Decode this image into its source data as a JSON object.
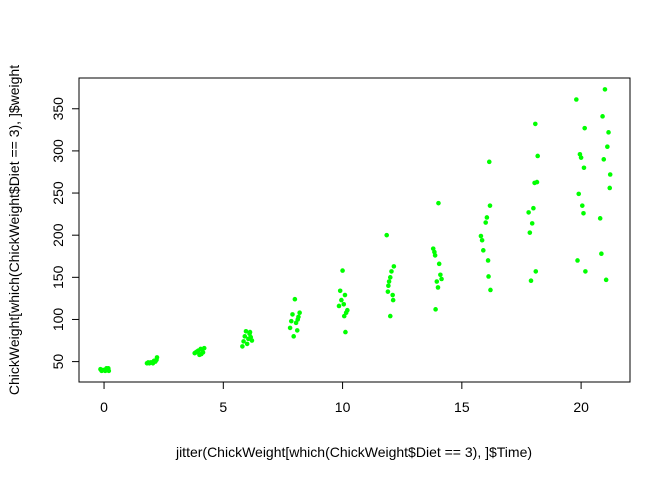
{
  "chart_data": {
    "type": "scatter",
    "title": "",
    "xlabel": "jitter(ChickWeight[which(ChickWeight$Diet == 3), ]$Time)",
    "ylabel": "ChickWeight[which(ChickWeight$Diet == 3), ]$weight",
    "xlim": [
      -1.05,
      22.05
    ],
    "ylim": [
      25.8,
      386.5
    ],
    "x_ticks": [
      0,
      5,
      10,
      15,
      20
    ],
    "y_ticks": [
      50,
      100,
      150,
      200,
      250,
      300,
      350
    ],
    "grid": false,
    "legend": "none",
    "point_color": "#00ff00",
    "series": [
      {
        "name": "",
        "points": [
          [
            -0.15,
            41
          ],
          [
            -0.05,
            40
          ],
          [
            0.05,
            39
          ],
          [
            0.15,
            41
          ],
          [
            0.2,
            39
          ],
          [
            -0.1,
            39
          ],
          [
            0.1,
            42
          ],
          [
            0.0,
            40
          ],
          [
            0.18,
            42
          ],
          [
            -0.12,
            40
          ],
          [
            1.8,
            48
          ],
          [
            1.95,
            49
          ],
          [
            2.05,
            48
          ],
          [
            2.15,
            50
          ],
          [
            2.2,
            52
          ],
          [
            1.9,
            48
          ],
          [
            2.1,
            51
          ],
          [
            2.22,
            55
          ],
          [
            2.0,
            49
          ],
          [
            1.85,
            49
          ],
          [
            3.8,
            60
          ],
          [
            3.9,
            62
          ],
          [
            4.0,
            58
          ],
          [
            4.1,
            64
          ],
          [
            4.15,
            61
          ],
          [
            3.95,
            63
          ],
          [
            4.05,
            65
          ],
          [
            3.85,
            61
          ],
          [
            4.2,
            66
          ],
          [
            4.08,
            59
          ],
          [
            5.8,
            68
          ],
          [
            5.85,
            74
          ],
          [
            5.9,
            80
          ],
          [
            5.95,
            86
          ],
          [
            6.0,
            71
          ],
          [
            6.05,
            77
          ],
          [
            6.1,
            83
          ],
          [
            6.15,
            79
          ],
          [
            6.2,
            75
          ],
          [
            6.12,
            85
          ],
          [
            7.8,
            90
          ],
          [
            7.85,
            98
          ],
          [
            7.9,
            106
          ],
          [
            7.95,
            80
          ],
          [
            8.0,
            124
          ],
          [
            8.05,
            96
          ],
          [
            8.1,
            87
          ],
          [
            8.15,
            103
          ],
          [
            8.2,
            108
          ],
          [
            8.12,
            100
          ],
          [
            9.85,
            116
          ],
          [
            9.9,
            134
          ],
          [
            9.95,
            123
          ],
          [
            10.0,
            158
          ],
          [
            10.05,
            118
          ],
          [
            10.1,
            129
          ],
          [
            10.12,
            85
          ],
          [
            10.15,
            108
          ],
          [
            10.2,
            111
          ],
          [
            10.07,
            104
          ],
          [
            11.85,
            200
          ],
          [
            11.9,
            133
          ],
          [
            11.95,
            145
          ],
          [
            12.0,
            104
          ],
          [
            12.05,
            157
          ],
          [
            12.1,
            129
          ],
          [
            12.12,
            123
          ],
          [
            12.15,
            163
          ],
          [
            12.0,
            150
          ],
          [
            11.92,
            140
          ],
          [
            13.8,
            184
          ],
          [
            13.85,
            180
          ],
          [
            13.9,
            112
          ],
          [
            13.95,
            145
          ],
          [
            14.0,
            138
          ],
          [
            14.05,
            166
          ],
          [
            14.1,
            153
          ],
          [
            14.15,
            148
          ],
          [
            14.02,
            238
          ],
          [
            13.88,
            176
          ],
          [
            15.8,
            199
          ],
          [
            15.85,
            194
          ],
          [
            15.9,
            182
          ],
          [
            16.0,
            215
          ],
          [
            16.05,
            221
          ],
          [
            16.1,
            170
          ],
          [
            16.12,
            151
          ],
          [
            16.15,
            287
          ],
          [
            16.18,
            235
          ],
          [
            16.2,
            135
          ],
          [
            17.8,
            227
          ],
          [
            17.85,
            203
          ],
          [
            17.9,
            146
          ],
          [
            17.95,
            214
          ],
          [
            18.0,
            232
          ],
          [
            18.05,
            262
          ],
          [
            18.08,
            332
          ],
          [
            18.1,
            157
          ],
          [
            18.15,
            263
          ],
          [
            18.18,
            294
          ],
          [
            19.8,
            361
          ],
          [
            19.85,
            170
          ],
          [
            19.9,
            249
          ],
          [
            19.95,
            296
          ],
          [
            20.0,
            292
          ],
          [
            20.05,
            235
          ],
          [
            20.1,
            226
          ],
          [
            20.12,
            280
          ],
          [
            20.15,
            327
          ],
          [
            20.18,
            157
          ],
          [
            20.8,
            220
          ],
          [
            20.85,
            178
          ],
          [
            20.9,
            341
          ],
          [
            20.95,
            290
          ],
          [
            21.0,
            373
          ],
          [
            21.05,
            147
          ],
          [
            21.1,
            305
          ],
          [
            21.15,
            322
          ],
          [
            21.2,
            256
          ],
          [
            21.22,
            272
          ]
        ]
      }
    ]
  }
}
